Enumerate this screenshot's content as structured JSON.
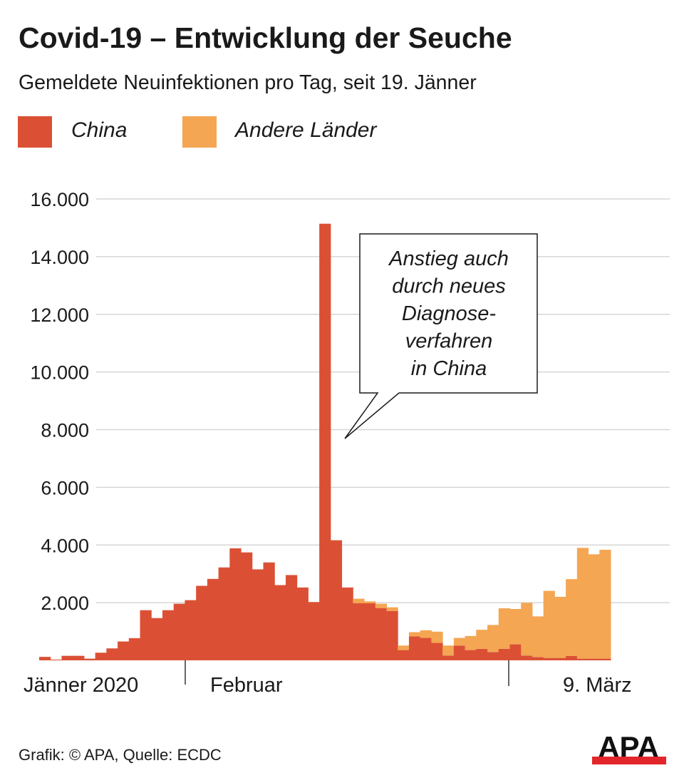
{
  "title": "Covid-19 – Entwicklung der Seuche",
  "subtitle": "Gemeldete Neuinfektionen pro Tag, seit 19. Jänner",
  "footer": "Grafik: © APA, Quelle: ECDC",
  "logo_text": "APA",
  "colors": {
    "china": "#db5034",
    "andere": "#f4a653",
    "grid": "#d6d6d6",
    "logo_red": "#e3262b"
  },
  "chart_data": {
    "type": "bar",
    "stacked": true,
    "title": "Covid-19 – Entwicklung der Seuche",
    "subtitle": "Gemeldete Neuinfektionen pro Tag, seit 19. Jänner",
    "xlabel": "",
    "ylabel": "",
    "ylim": [
      0,
      16000
    ],
    "grid": true,
    "legend_position": "top-left",
    "y_ticks": [
      "2.000",
      "4.000",
      "6.000",
      "8.000",
      "10.000",
      "12.000",
      "14.000",
      "16.000"
    ],
    "y_tick_values": [
      2000,
      4000,
      6000,
      8000,
      10000,
      12000,
      14000,
      16000
    ],
    "x_tick_labels": [
      "Jänner 2020",
      "Februar",
      "9. März"
    ],
    "categories": [
      "2020-01-19",
      "2020-01-20",
      "2020-01-21",
      "2020-01-22",
      "2020-01-23",
      "2020-01-24",
      "2020-01-25",
      "2020-01-26",
      "2020-01-27",
      "2020-01-28",
      "2020-01-29",
      "2020-01-30",
      "2020-01-31",
      "2020-02-01",
      "2020-02-02",
      "2020-02-03",
      "2020-02-04",
      "2020-02-05",
      "2020-02-06",
      "2020-02-07",
      "2020-02-08",
      "2020-02-09",
      "2020-02-10",
      "2020-02-11",
      "2020-02-12",
      "2020-02-13",
      "2020-02-14",
      "2020-02-15",
      "2020-02-16",
      "2020-02-17",
      "2020-02-18",
      "2020-02-19",
      "2020-02-20",
      "2020-02-21",
      "2020-02-22",
      "2020-02-23",
      "2020-02-24",
      "2020-02-25",
      "2020-02-26",
      "2020-02-27",
      "2020-02-28",
      "2020-02-29",
      "2020-03-01",
      "2020-03-02",
      "2020-03-03",
      "2020-03-04",
      "2020-03-05",
      "2020-03-06",
      "2020-03-07",
      "2020-03-08",
      "2020-03-09"
    ],
    "series": [
      {
        "name": "China",
        "values": [
          120,
          25,
          157,
          157,
          58,
          265,
          414,
          654,
          770,
          1739,
          1466,
          1739,
          1963,
          2087,
          2584,
          2824,
          3222,
          3884,
          3743,
          3155,
          3395,
          2609,
          2957,
          2526,
          2021,
          15141,
          4164,
          2526,
          1979,
          1979,
          1814,
          1714,
          356,
          828,
          778,
          605,
          166,
          513,
          356,
          398,
          290,
          398,
          555,
          166,
          116,
          83,
          83,
          149,
          58,
          58,
          58
        ]
      },
      {
        "name": "Andere Länder",
        "values": [
          0,
          0,
          0,
          0,
          0,
          0,
          0,
          0,
          0,
          0,
          0,
          0,
          0,
          0,
          0,
          0,
          0,
          0,
          0,
          0,
          0,
          0,
          0,
          0,
          0,
          0,
          0,
          0,
          158,
          67,
          149,
          125,
          157,
          149,
          265,
          389,
          347,
          265,
          489,
          662,
          936,
          1407,
          1226,
          1830,
          1408,
          2327,
          2120,
          2667,
          3842,
          3619,
          3776
        ]
      }
    ],
    "annotation": {
      "lines": [
        "Anstieg auch",
        "durch neues",
        "Diagnose-",
        "verfahren",
        "in China"
      ],
      "target_category": "2020-02-13"
    }
  }
}
